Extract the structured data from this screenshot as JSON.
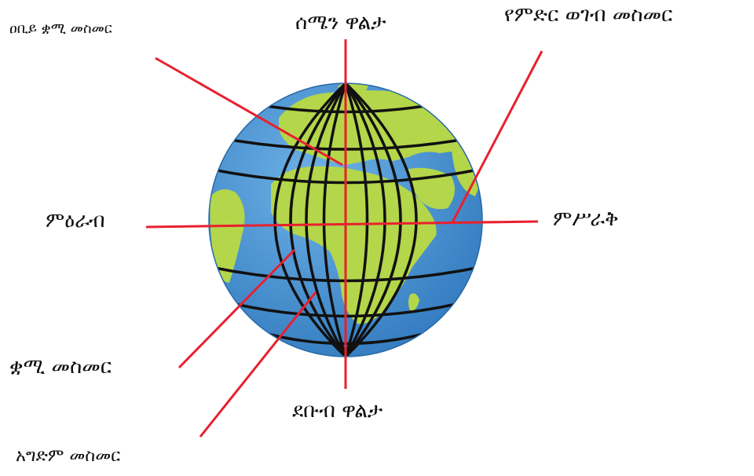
{
  "labels": {
    "prime_meridian": "ዐቢይ ቋሚ መስመር",
    "north_pole": "ሰሜን ዋልታ",
    "equator": "የምድር ወገብ መስመር",
    "west": "ምዕራብ",
    "east": "ምሥራቅ",
    "meridian": "ቋሚ መስመር",
    "south_pole": "ደቡብ ዋልታ",
    "parallel": "አግድም መስመር"
  },
  "colors": {
    "ocean": "#3f8fd0",
    "land": "#b4d64a",
    "grid": "#111111",
    "pointer": "#e8202f",
    "text": "#111111"
  }
}
